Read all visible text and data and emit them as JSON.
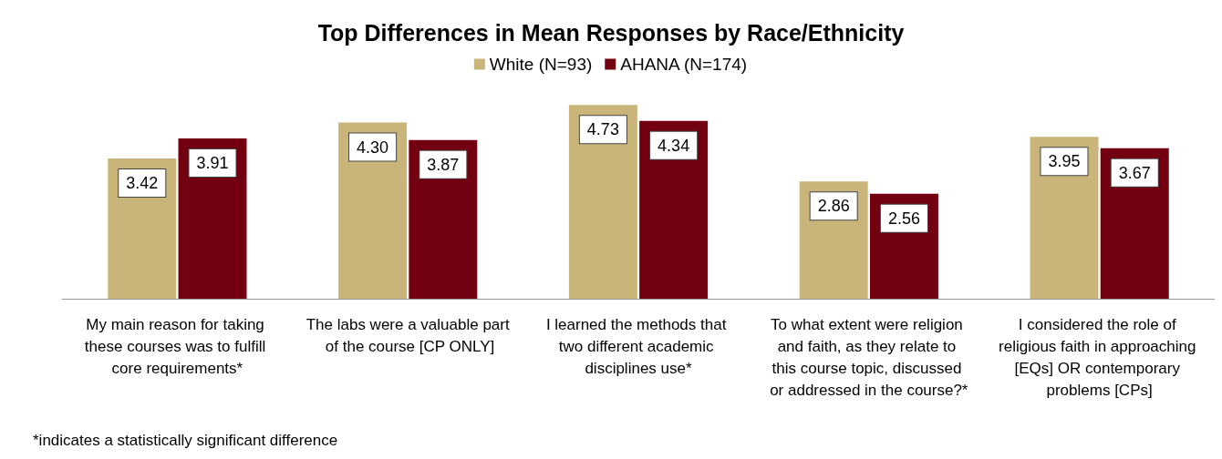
{
  "chart_data": {
    "type": "bar",
    "title": "Top Differences in Mean Responses by Race/Ethnicity",
    "categories": [
      "My main reason for taking these courses was to fulfill core requirements*",
      "The labs were a valuable part of the course [CP ONLY]",
      "I learned the methods that two different academic disciplines use*",
      "To what extent were religion and faith, as they relate to this course topic, discussed or addressed in the course?*",
      "I considered the role of religious faith in approaching [EQs] OR contemporary problems [CPs]"
    ],
    "series": [
      {
        "name": "White (N=93)",
        "color": "#c9b57a",
        "values": [
          3.42,
          4.3,
          4.73,
          2.86,
          3.95
        ],
        "value_labels": [
          "3.42",
          "4.30",
          "4.73",
          "2.86",
          "3.95"
        ]
      },
      {
        "name": "AHANA (N=174)",
        "color": "#720010",
        "values": [
          3.91,
          3.87,
          4.34,
          2.56,
          3.67
        ],
        "value_labels": [
          "3.91",
          "3.87",
          "4.34",
          "2.56",
          "3.67"
        ]
      }
    ],
    "legend": "top",
    "grid": false,
    "annotations": [
      "*indicates a statistically significant difference"
    ]
  }
}
